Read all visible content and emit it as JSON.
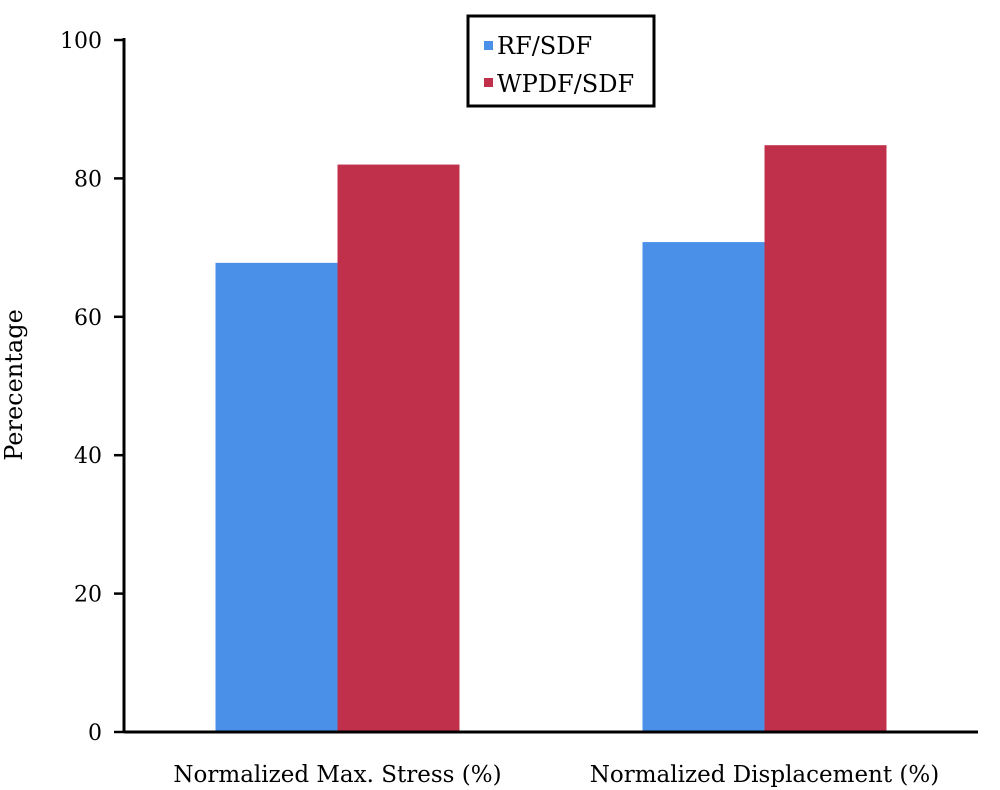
{
  "chart_data": {
    "type": "bar",
    "title": "",
    "xlabel": "",
    "ylabel": "Perecentage",
    "ylim": [
      0,
      100
    ],
    "yticks": [
      0,
      20,
      40,
      60,
      80,
      100
    ],
    "categories": [
      "Normalized Max. Stress (%)",
      "Normalized Displacement (%)"
    ],
    "series": [
      {
        "name": "RF/SDF",
        "values": [
          67.8,
          70.8
        ],
        "color": "#4a90e8"
      },
      {
        "name": "WPDF/SDF",
        "values": [
          82.0,
          84.8
        ],
        "color": "#c0304a"
      }
    ],
    "grid": false,
    "legend_position": "top-center"
  }
}
